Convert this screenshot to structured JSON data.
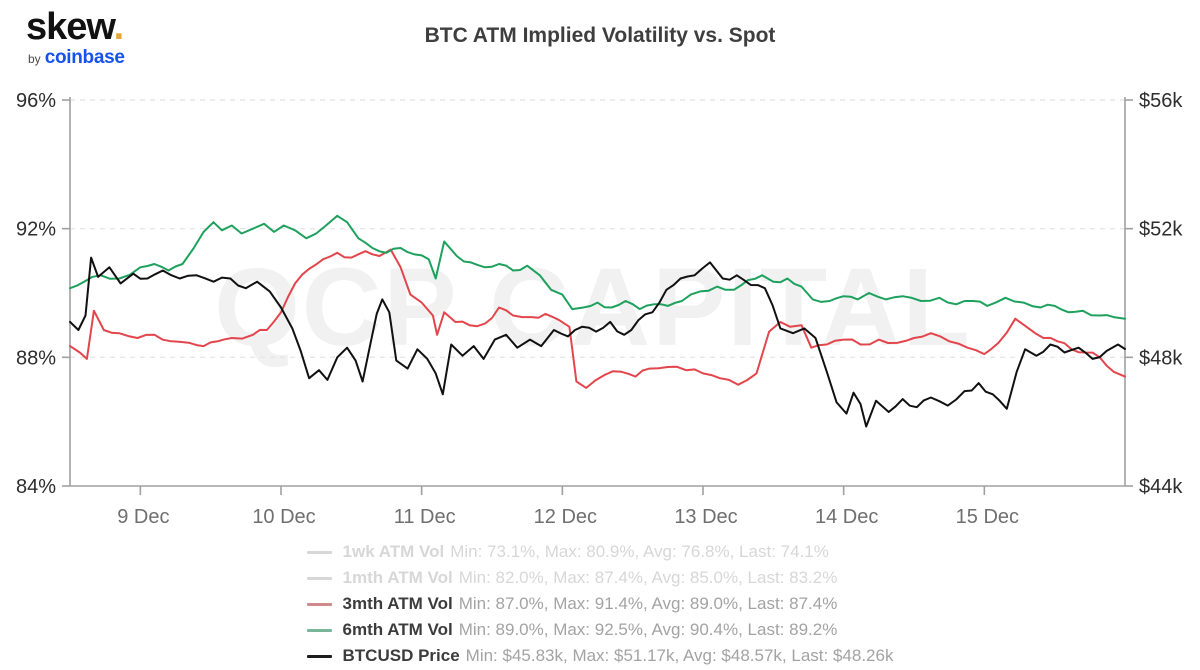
{
  "brand": {
    "name": "skew",
    "dot": ".",
    "byline_prefix": "by",
    "byline_company": "coinbase",
    "company_color": "#1652f0",
    "dot_color": "#eaa43c"
  },
  "header": {
    "title": "BTC ATM Implied Volatility vs. Spot"
  },
  "watermark": {
    "text": "QCP CAPITAL",
    "color": "#f1f1f1"
  },
  "legend": {
    "stat_labels": [
      "Min",
      "Max",
      "Avg",
      "Last"
    ],
    "active_label_color": "#3c3c3c",
    "active_stats_color": "#a3a3a3",
    "disabled_color": "#d7d7d7"
  },
  "chart_data": {
    "type": "line",
    "title": "BTC ATM Implied Volatility vs. Spot",
    "grid": "horizontal-dashed",
    "legend_position": "bottom",
    "x_axis": {
      "unit": "days",
      "domain_days": [
        0,
        7.5
      ],
      "tick_days": [
        0.5,
        1.5,
        2.5,
        3.5,
        4.5,
        5.5,
        6.5
      ],
      "tick_labels": [
        "9 Dec",
        "10 Dec",
        "11 Dec",
        "12 Dec",
        "13 Dec",
        "14 Dec",
        "15 Dec"
      ],
      "label_color": "#6f6f6f"
    },
    "y_axis_left": {
      "range": [
        84,
        96
      ],
      "ticks": [
        96,
        92,
        88,
        84
      ],
      "tick_labels": [
        "96%",
        "92%",
        "88%",
        "84%"
      ],
      "label_color": "#2d2d2d"
    },
    "y_axis_right": {
      "range": [
        44,
        56
      ],
      "ticks": [
        56,
        52,
        48,
        44
      ],
      "tick_labels": [
        "$56k",
        "$52k",
        "$48k",
        "$44k"
      ],
      "label_color": "#2d2d2d"
    },
    "axis_line_color": "#a0a0a0",
    "grid_color": "#e6e6e6",
    "series": [
      {
        "name": "1wk ATM Vol",
        "visible": false,
        "axis": "left",
        "unit": "%",
        "color": "#d7d7d7",
        "legend_dash_color": "#d7d7d7",
        "stats": {
          "min": 73.1,
          "max": 80.9,
          "avg": 76.8,
          "last": 74.1
        },
        "jitter": 0,
        "points": []
      },
      {
        "name": "1mth ATM Vol",
        "visible": false,
        "axis": "left",
        "unit": "%",
        "color": "#d7d7d7",
        "legend_dash_color": "#d7d7d7",
        "stats": {
          "min": 82.0,
          "max": 87.4,
          "avg": 85.0,
          "last": 83.2
        },
        "jitter": 0,
        "points": []
      },
      {
        "name": "3mth ATM Vol",
        "visible": true,
        "axis": "left",
        "unit": "%",
        "color": "#e2464c",
        "legend_dash_color": "#d08a8b",
        "stats": {
          "min": 87.0,
          "max": 91.4,
          "avg": 89.0,
          "last": 87.4
        },
        "jitter": 0.08,
        "points": [
          [
            0.0,
            88.35
          ],
          [
            0.07,
            88.15
          ],
          [
            0.12,
            87.95
          ],
          [
            0.17,
            89.45
          ],
          [
            0.24,
            88.85
          ],
          [
            0.35,
            88.75
          ],
          [
            0.48,
            88.6
          ],
          [
            0.6,
            88.7
          ],
          [
            0.72,
            88.5
          ],
          [
            0.85,
            88.45
          ],
          [
            0.95,
            88.35
          ],
          [
            1.05,
            88.5
          ],
          [
            1.15,
            88.6
          ],
          [
            1.3,
            88.7
          ],
          [
            1.4,
            88.85
          ],
          [
            1.5,
            89.4
          ],
          [
            1.6,
            90.3
          ],
          [
            1.7,
            90.75
          ],
          [
            1.8,
            91.05
          ],
          [
            1.9,
            91.25
          ],
          [
            2.0,
            91.1
          ],
          [
            2.1,
            91.3
          ],
          [
            2.2,
            91.15
          ],
          [
            2.28,
            91.35
          ],
          [
            2.35,
            90.8
          ],
          [
            2.42,
            89.95
          ],
          [
            2.5,
            89.7
          ],
          [
            2.58,
            89.3
          ],
          [
            2.61,
            88.7
          ],
          [
            2.66,
            89.4
          ],
          [
            2.74,
            89.1
          ],
          [
            2.84,
            89.0
          ],
          [
            2.95,
            89.05
          ],
          [
            3.05,
            89.55
          ],
          [
            3.15,
            89.3
          ],
          [
            3.28,
            89.25
          ],
          [
            3.38,
            89.35
          ],
          [
            3.48,
            89.15
          ],
          [
            3.55,
            88.95
          ],
          [
            3.6,
            87.25
          ],
          [
            3.67,
            87.05
          ],
          [
            3.8,
            87.45
          ],
          [
            3.92,
            87.55
          ],
          [
            4.02,
            87.4
          ],
          [
            4.12,
            87.65
          ],
          [
            4.25,
            87.7
          ],
          [
            4.38,
            87.6
          ],
          [
            4.5,
            87.5
          ],
          [
            4.62,
            87.35
          ],
          [
            4.75,
            87.15
          ],
          [
            4.88,
            87.5
          ],
          [
            4.97,
            88.8
          ],
          [
            5.05,
            89.1
          ],
          [
            5.12,
            88.95
          ],
          [
            5.2,
            89.0
          ],
          [
            5.27,
            88.3
          ],
          [
            5.38,
            88.4
          ],
          [
            5.5,
            88.55
          ],
          [
            5.62,
            88.4
          ],
          [
            5.75,
            88.55
          ],
          [
            5.88,
            88.45
          ],
          [
            6.0,
            88.6
          ],
          [
            6.12,
            88.75
          ],
          [
            6.25,
            88.5
          ],
          [
            6.38,
            88.3
          ],
          [
            6.5,
            88.1
          ],
          [
            6.6,
            88.45
          ],
          [
            6.72,
            89.2
          ],
          [
            6.8,
            88.95
          ],
          [
            6.92,
            88.6
          ],
          [
            7.02,
            88.5
          ],
          [
            7.12,
            88.25
          ],
          [
            7.22,
            88.15
          ],
          [
            7.32,
            88.0
          ],
          [
            7.42,
            87.55
          ],
          [
            7.5,
            87.4
          ]
        ]
      },
      {
        "name": "6mth ATM Vol",
        "visible": true,
        "axis": "left",
        "unit": "%",
        "color": "#1fa15e",
        "legend_dash_color": "#79b69c",
        "stats": {
          "min": 89.0,
          "max": 92.5,
          "avg": 90.4,
          "last": 89.2
        },
        "jitter": 0.07,
        "points": [
          [
            0.0,
            90.15
          ],
          [
            0.1,
            90.35
          ],
          [
            0.22,
            90.55
          ],
          [
            0.35,
            90.45
          ],
          [
            0.5,
            90.8
          ],
          [
            0.6,
            90.9
          ],
          [
            0.7,
            90.7
          ],
          [
            0.8,
            90.9
          ],
          [
            0.88,
            91.4
          ],
          [
            0.95,
            91.9
          ],
          [
            1.02,
            92.2
          ],
          [
            1.08,
            91.95
          ],
          [
            1.15,
            92.1
          ],
          [
            1.22,
            91.85
          ],
          [
            1.3,
            92.0
          ],
          [
            1.38,
            92.15
          ],
          [
            1.45,
            91.9
          ],
          [
            1.52,
            92.1
          ],
          [
            1.6,
            91.95
          ],
          [
            1.68,
            91.7
          ],
          [
            1.75,
            91.85
          ],
          [
            1.82,
            92.1
          ],
          [
            1.9,
            92.4
          ],
          [
            1.97,
            92.2
          ],
          [
            2.05,
            91.7
          ],
          [
            2.15,
            91.4
          ],
          [
            2.25,
            91.25
          ],
          [
            2.35,
            91.4
          ],
          [
            2.45,
            91.2
          ],
          [
            2.55,
            91.05
          ],
          [
            2.6,
            90.45
          ],
          [
            2.66,
            91.6
          ],
          [
            2.75,
            91.15
          ],
          [
            2.85,
            90.95
          ],
          [
            2.95,
            90.8
          ],
          [
            3.05,
            90.9
          ],
          [
            3.15,
            90.7
          ],
          [
            3.25,
            90.85
          ],
          [
            3.34,
            90.55
          ],
          [
            3.42,
            90.1
          ],
          [
            3.5,
            89.95
          ],
          [
            3.57,
            89.5
          ],
          [
            3.65,
            89.55
          ],
          [
            3.75,
            89.7
          ],
          [
            3.85,
            89.55
          ],
          [
            3.95,
            89.75
          ],
          [
            4.05,
            89.5
          ],
          [
            4.15,
            89.65
          ],
          [
            4.25,
            89.6
          ],
          [
            4.35,
            89.75
          ],
          [
            4.48,
            90.05
          ],
          [
            4.6,
            90.2
          ],
          [
            4.72,
            90.1
          ],
          [
            4.82,
            90.4
          ],
          [
            4.92,
            90.55
          ],
          [
            5.0,
            90.35
          ],
          [
            5.1,
            90.45
          ],
          [
            5.2,
            90.2
          ],
          [
            5.28,
            89.8
          ],
          [
            5.4,
            89.75
          ],
          [
            5.5,
            89.9
          ],
          [
            5.6,
            89.8
          ],
          [
            5.68,
            90.0
          ],
          [
            5.8,
            89.8
          ],
          [
            5.92,
            89.9
          ],
          [
            6.05,
            89.75
          ],
          [
            6.18,
            89.85
          ],
          [
            6.3,
            89.65
          ],
          [
            6.42,
            89.75
          ],
          [
            6.52,
            89.6
          ],
          [
            6.65,
            89.85
          ],
          [
            6.78,
            89.7
          ],
          [
            6.9,
            89.55
          ],
          [
            7.0,
            89.6
          ],
          [
            7.1,
            89.4
          ],
          [
            7.2,
            89.45
          ],
          [
            7.32,
            89.3
          ],
          [
            7.42,
            89.25
          ],
          [
            7.5,
            89.2
          ]
        ]
      },
      {
        "name": "BTCUSD Price",
        "visible": true,
        "axis": "right",
        "unit": "$k",
        "color": "#111111",
        "legend_dash_color": "#1d1d1d",
        "stats": {
          "min": 45.83,
          "max": 51.17,
          "avg": 48.57,
          "last": 48.26
        },
        "jitter": 0.11,
        "points": [
          [
            0.0,
            49.1
          ],
          [
            0.06,
            48.85
          ],
          [
            0.11,
            49.3
          ],
          [
            0.15,
            51.1
          ],
          [
            0.2,
            50.5
          ],
          [
            0.28,
            50.8
          ],
          [
            0.36,
            50.3
          ],
          [
            0.45,
            50.6
          ],
          [
            0.55,
            50.45
          ],
          [
            0.66,
            50.7
          ],
          [
            0.78,
            50.45
          ],
          [
            0.9,
            50.55
          ],
          [
            1.02,
            50.35
          ],
          [
            1.14,
            50.45
          ],
          [
            1.25,
            50.15
          ],
          [
            1.33,
            50.35
          ],
          [
            1.42,
            50.05
          ],
          [
            1.5,
            49.55
          ],
          [
            1.58,
            48.9
          ],
          [
            1.64,
            48.2
          ],
          [
            1.7,
            47.35
          ],
          [
            1.77,
            47.6
          ],
          [
            1.83,
            47.3
          ],
          [
            1.9,
            48.0
          ],
          [
            1.97,
            48.3
          ],
          [
            2.03,
            47.9
          ],
          [
            2.08,
            47.25
          ],
          [
            2.13,
            48.3
          ],
          [
            2.18,
            49.35
          ],
          [
            2.22,
            49.8
          ],
          [
            2.27,
            49.4
          ],
          [
            2.32,
            47.9
          ],
          [
            2.4,
            47.65
          ],
          [
            2.47,
            48.25
          ],
          [
            2.54,
            47.95
          ],
          [
            2.6,
            47.5
          ],
          [
            2.65,
            46.85
          ],
          [
            2.71,
            48.4
          ],
          [
            2.79,
            48.05
          ],
          [
            2.87,
            48.35
          ],
          [
            2.94,
            47.95
          ],
          [
            3.02,
            48.55
          ],
          [
            3.1,
            48.7
          ],
          [
            3.18,
            48.3
          ],
          [
            3.27,
            48.55
          ],
          [
            3.35,
            48.35
          ],
          [
            3.44,
            48.85
          ],
          [
            3.54,
            48.65
          ],
          [
            3.64,
            48.95
          ],
          [
            3.74,
            48.8
          ],
          [
            3.84,
            49.1
          ],
          [
            3.94,
            48.7
          ],
          [
            4.04,
            49.15
          ],
          [
            4.14,
            49.4
          ],
          [
            4.24,
            50.1
          ],
          [
            4.34,
            50.45
          ],
          [
            4.44,
            50.55
          ],
          [
            4.55,
            50.95
          ],
          [
            4.64,
            50.45
          ],
          [
            4.74,
            50.55
          ],
          [
            4.84,
            50.25
          ],
          [
            4.94,
            50.15
          ],
          [
            5.05,
            48.9
          ],
          [
            5.14,
            48.75
          ],
          [
            5.22,
            48.9
          ],
          [
            5.3,
            48.6
          ],
          [
            5.38,
            47.55
          ],
          [
            5.45,
            46.6
          ],
          [
            5.52,
            46.25
          ],
          [
            5.57,
            46.9
          ],
          [
            5.62,
            46.55
          ],
          [
            5.66,
            45.85
          ],
          [
            5.73,
            46.65
          ],
          [
            5.82,
            46.3
          ],
          [
            5.92,
            46.7
          ],
          [
            6.02,
            46.45
          ],
          [
            6.12,
            46.75
          ],
          [
            6.24,
            46.5
          ],
          [
            6.36,
            46.95
          ],
          [
            6.46,
            47.2
          ],
          [
            6.56,
            46.85
          ],
          [
            6.66,
            46.4
          ],
          [
            6.73,
            47.55
          ],
          [
            6.79,
            48.25
          ],
          [
            6.87,
            48.05
          ],
          [
            6.97,
            48.4
          ],
          [
            7.07,
            48.15
          ],
          [
            7.17,
            48.3
          ],
          [
            7.27,
            47.95
          ],
          [
            7.37,
            48.2
          ],
          [
            7.45,
            48.4
          ],
          [
            7.5,
            48.26
          ]
        ]
      }
    ]
  }
}
